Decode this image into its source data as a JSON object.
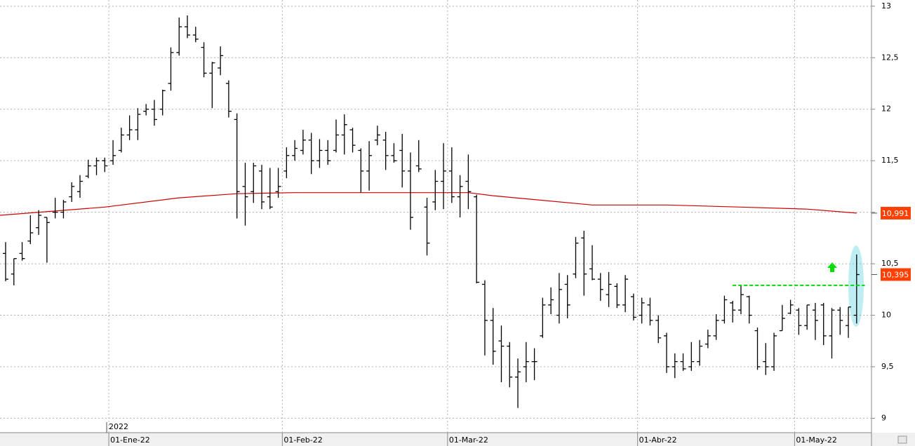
{
  "chart_data": {
    "type": "ohlc",
    "year_label": "2022",
    "xlim": [
      -0.68,
      104.8
    ],
    "xticks": [
      {
        "value": 13,
        "label": "01-Ene-22"
      },
      {
        "value": 34,
        "label": "01-Feb-22"
      },
      {
        "value": 54,
        "label": "01-Mar-22"
      },
      {
        "value": 77,
        "label": "01-Abr-22"
      },
      {
        "value": 96,
        "label": "01-May-22"
      }
    ],
    "ylim": [
      8.86,
      13.06
    ],
    "yticks": [
      9,
      {
        "value": 9.5,
        "label": "9,5"
      },
      10,
      {
        "value": 10.5,
        "label": "10,5"
      },
      11,
      {
        "value": 11.5,
        "label": "11,5"
      },
      12,
      {
        "value": 12.5,
        "label": "12,5"
      },
      13
    ],
    "grid": true,
    "color": "#000000",
    "open": [
      10.6,
      10.4,
      10.6,
      10.72,
      10.85,
      10.95,
      11.0,
      11.0,
      11.15,
      11.2,
      11.35,
      11.45,
      11.5,
      11.5,
      11.6,
      11.75,
      11.8,
      11.98,
      12.0,
      12.0,
      12.25,
      12.55,
      12.8,
      12.72,
      12.6,
      12.35,
      12.4,
      12.25,
      11.9,
      11.25,
      11.2,
      11.4,
      11.15,
      11.2,
      11.4,
      11.55,
      11.6,
      11.7,
      11.5,
      11.6,
      11.6,
      11.75,
      11.8,
      11.6,
      11.4,
      11.7,
      11.7,
      11.55,
      11.6,
      11.4,
      11.45,
      11.05,
      11.1,
      11.3,
      11.4,
      11.15,
      11.3,
      11.15,
      10.3,
      9.95,
      9.75,
      9.7,
      9.4,
      9.5,
      9.55,
      9.8,
      10.1,
      10.0,
      10.3,
      10.4,
      10.75,
      10.45,
      10.35,
      10.2,
      10.28,
      10.1,
      10.18,
      10.0,
      10.1,
      9.95,
      9.8,
      9.5,
      9.55,
      9.5,
      9.55,
      9.72,
      9.8,
      9.95,
      10.12,
      10.05,
      10.18,
      9.85,
      9.55,
      9.5,
      9.85,
      10.02,
      10.05,
      9.9,
      10.05,
      10.1,
      9.8,
      10.05,
      9.9,
      10.0
    ],
    "high": [
      10.71,
      10.55,
      10.71,
      10.97,
      11.02,
      10.95,
      11.14,
      11.12,
      11.29,
      11.36,
      11.51,
      11.53,
      11.53,
      11.7,
      11.82,
      11.94,
      12.01,
      12.05,
      12.09,
      12.19,
      12.6,
      12.89,
      12.91,
      12.8,
      12.65,
      12.46,
      12.61,
      12.28,
      11.96,
      11.48,
      11.48,
      11.46,
      11.43,
      11.43,
      11.63,
      11.7,
      11.8,
      11.77,
      11.71,
      11.7,
      11.9,
      11.95,
      11.82,
      11.62,
      11.69,
      11.84,
      11.78,
      11.67,
      11.76,
      11.58,
      11.7,
      11.14,
      11.41,
      11.67,
      11.63,
      11.36,
      11.56,
      11.17,
      10.34,
      10.07,
      9.9,
      9.74,
      9.58,
      9.74,
      9.68,
      10.17,
      10.27,
      10.41,
      10.39,
      10.76,
      10.82,
      10.68,
      10.41,
      10.42,
      10.31,
      10.39,
      10.21,
      10.17,
      10.17,
      10.0,
      9.83,
      9.63,
      9.63,
      9.74,
      9.76,
      9.86,
      10.01,
      10.19,
      10.14,
      10.29,
      10.19,
      9.88,
      9.73,
      9.83,
      10.1,
      10.15,
      10.07,
      10.1,
      10.12,
      10.12,
      10.07,
      10.08,
      10.08,
      10.59
    ],
    "low": [
      10.33,
      10.29,
      10.53,
      10.69,
      10.78,
      10.51,
      10.94,
      10.94,
      11.1,
      11.14,
      11.33,
      11.36,
      11.39,
      11.46,
      11.58,
      11.7,
      11.7,
      11.94,
      11.84,
      11.94,
      12.18,
      12.52,
      12.69,
      12.65,
      12.31,
      12.01,
      12.33,
      11.92,
      10.94,
      10.87,
      11.09,
      11.03,
      11.03,
      11.14,
      11.33,
      11.5,
      11.56,
      11.37,
      11.43,
      11.46,
      11.58,
      11.56,
      11.58,
      11.19,
      11.21,
      11.65,
      11.41,
      11.48,
      11.24,
      10.83,
      11.39,
      10.58,
      11.02,
      11.03,
      11.09,
      10.95,
      11.03,
      10.31,
      9.61,
      9.52,
      9.35,
      9.3,
      9.1,
      9.35,
      9.37,
      9.78,
      10.01,
      9.92,
      9.97,
      10.36,
      10.19,
      10.34,
      10.14,
      10.08,
      10.07,
      10.03,
      9.95,
      9.92,
      9.9,
      9.73,
      9.44,
      9.39,
      9.46,
      9.46,
      9.51,
      9.68,
      9.76,
      9.92,
      9.93,
      10.01,
      9.92,
      9.47,
      9.42,
      9.46,
      9.85,
      10.01,
      9.81,
      9.86,
      9.76,
      9.71,
      9.58,
      9.81,
      9.78,
      9.92
    ],
    "close": [
      10.35,
      10.55,
      10.55,
      10.8,
      10.97,
      10.9,
      11.0,
      11.1,
      11.25,
      11.3,
      11.45,
      11.5,
      11.45,
      11.55,
      11.75,
      11.8,
      11.95,
      12.0,
      11.9,
      12.18,
      12.55,
      12.8,
      12.72,
      12.68,
      12.35,
      12.45,
      12.52,
      11.98,
      11.2,
      11.15,
      11.45,
      11.1,
      11.05,
      11.25,
      11.55,
      11.62,
      11.7,
      11.5,
      11.6,
      11.5,
      11.75,
      11.85,
      11.65,
      11.4,
      11.55,
      11.75,
      11.55,
      11.5,
      11.4,
      10.95,
      11.42,
      10.7,
      11.3,
      11.4,
      11.15,
      11.25,
      11.2,
      10.32,
      9.95,
      9.65,
      9.7,
      9.4,
      9.45,
      9.55,
      9.55,
      10.1,
      10.15,
      10.25,
      10.1,
      10.7,
      10.4,
      10.35,
      10.25,
      10.3,
      10.1,
      10.35,
      9.98,
      10.12,
      9.95,
      9.78,
      9.5,
      9.55,
      9.48,
      9.55,
      9.7,
      9.8,
      9.95,
      10.15,
      10.05,
      10.2,
      10.0,
      9.5,
      9.5,
      9.8,
      9.97,
      10.1,
      9.9,
      10.1,
      9.95,
      9.8,
      10.05,
      9.95,
      10.08,
      10.395
    ],
    "ma": {
      "color": "#cc0000",
      "x": [
        -0.68,
        12,
        21,
        28,
        35,
        56,
        59,
        71,
        80,
        89,
        97,
        103
      ],
      "values": [
        10.97,
        11.05,
        11.14,
        11.18,
        11.19,
        11.19,
        11.16,
        11.07,
        11.07,
        11.05,
        11.03,
        10.991
      ]
    },
    "level": {
      "color": "#00dd00",
      "value": 10.29,
      "x": [
        88,
        104
      ]
    },
    "tags": [
      {
        "value": 10.991,
        "label": "10,991",
        "color": "#ff4000"
      },
      {
        "value": 10.395,
        "label": "10,395",
        "color": "#ff4000"
      }
    ]
  }
}
